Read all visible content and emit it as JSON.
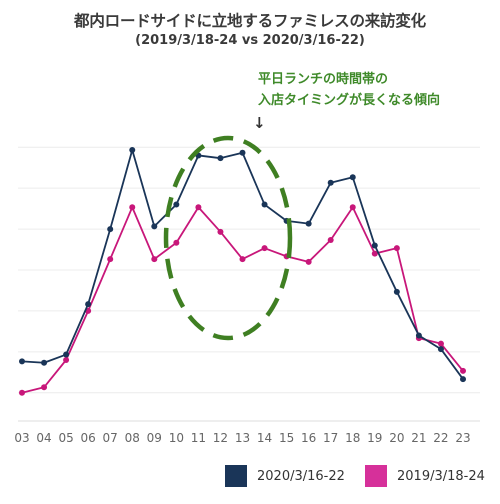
{
  "chart_data": {
    "type": "line",
    "title": "都内ロードサイドに立地するファミレスの来訪変化",
    "subtitle": "(2019/3/18-24 vs 2020/3/16-22)",
    "annotation": [
      "平日ランチの時間帯の",
      "入店タイミングが長くなる傾向"
    ],
    "annotation_arrow": "↓",
    "x": [
      "03",
      "04",
      "05",
      "06",
      "07",
      "08",
      "09",
      "10",
      "11",
      "12",
      "13",
      "14",
      "15",
      "16",
      "17",
      "18",
      "19",
      "20",
      "21",
      "22",
      "23"
    ],
    "series": [
      {
        "name": "2020/3/16-22",
        "color": "#1a3558",
        "values": [
          6.3,
          6.2,
          6.8,
          10.5,
          16.0,
          21.8,
          16.2,
          17.8,
          21.4,
          21.2,
          21.6,
          17.8,
          16.6,
          16.4,
          19.4,
          19.8,
          14.8,
          11.4,
          8.2,
          7.2,
          5.0
        ]
      },
      {
        "name": "2019/3/18-24",
        "color": "#c8177a",
        "values": [
          4.0,
          4.4,
          6.4,
          10.0,
          13.8,
          17.6,
          13.8,
          15.0,
          17.6,
          15.8,
          13.8,
          14.6,
          14.0,
          13.6,
          15.2,
          17.6,
          14.2,
          14.6,
          8.0,
          7.6,
          5.6
        ]
      }
    ],
    "ylim": [
      2,
      24
    ],
    "grid": true,
    "legend": "bottom-right",
    "highlight_ellipse": "green dashed ellipse around 10–14"
  }
}
